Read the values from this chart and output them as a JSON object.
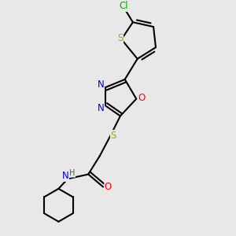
{
  "background_color": "#e8e8e8",
  "atom_colors": {
    "C": "#000000",
    "H": "#555555",
    "N": "#0000cc",
    "O": "#ff0000",
    "S": "#aaaa00",
    "Cl": "#00aa00"
  },
  "bond_color": "#000000",
  "bond_width": 1.5,
  "figsize": [
    3.0,
    3.0
  ],
  "dpi": 100,
  "xlim": [
    0,
    10
  ],
  "ylim": [
    0,
    10
  ]
}
